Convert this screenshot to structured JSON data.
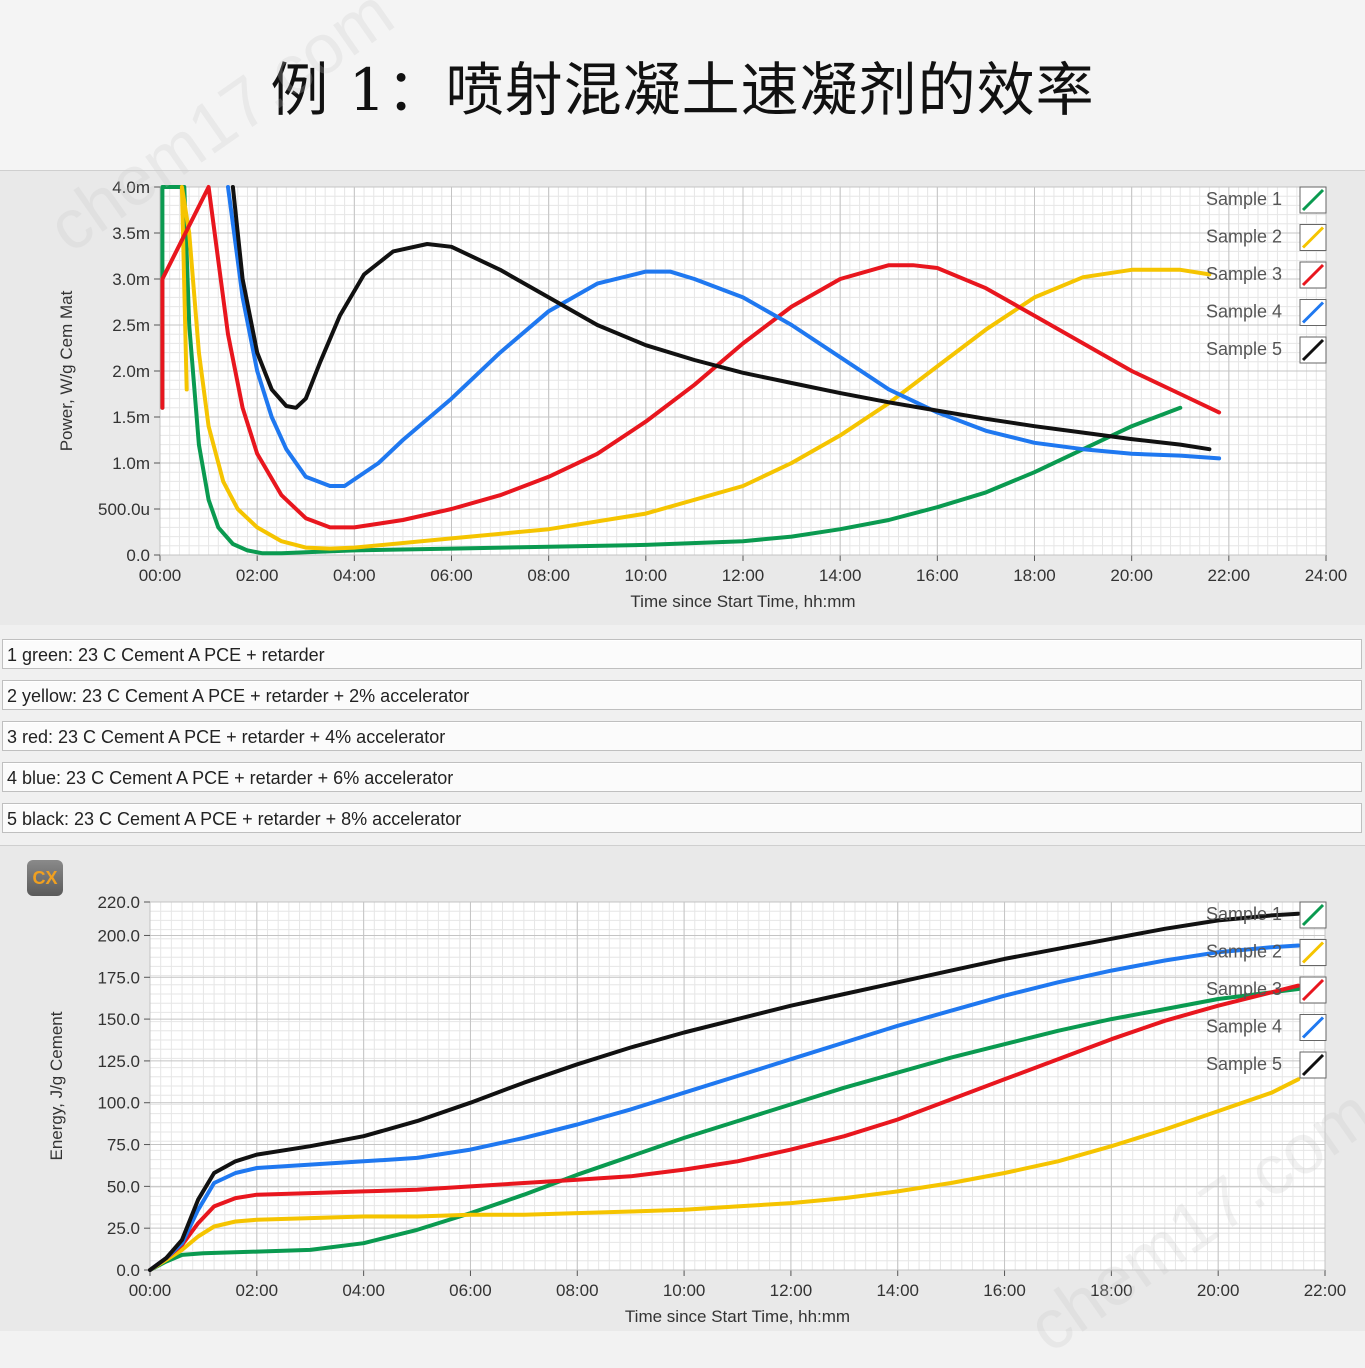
{
  "title": "例 1：喷射混凝土速凝剂的效率",
  "cx_logo": "CX",
  "watermark": "chem17.com",
  "colors": {
    "green": "#0a9a50",
    "yellow": "#f5c400",
    "red": "#e8161e",
    "blue": "#1f78f0",
    "black": "#111111"
  },
  "notes": [
    "1 green: 23 C Cement A PCE + retarder",
    "2 yellow: 23 C Cement A PCE + retarder  + 2% accelerator",
    "3 red: 23 C Cement A PCE + retarder  + 4% accelerator",
    "4 blue: 23 C Cement A PCE + retarder  + 6% accelerator",
    "5 black: 23 C Cement A PCE + retarder  + 8% accelerator"
  ],
  "chart_data": [
    {
      "type": "line",
      "xlabel": "Time since Start Time, hh:mm",
      "ylabel": "Power, W/g Cem Mat",
      "xlim": [
        0,
        24
      ],
      "ylim": [
        0,
        4.0
      ],
      "x_ticks": [
        "00:00",
        "02:00",
        "04:00",
        "06:00",
        "08:00",
        "10:00",
        "12:00",
        "14:00",
        "16:00",
        "18:00",
        "20:00",
        "22:00",
        "24:00"
      ],
      "y_ticks": [
        "0.0",
        "500.0u",
        "1.0m",
        "1.5m",
        "2.0m",
        "2.5m",
        "3.0m",
        "3.5m",
        "4.0m"
      ],
      "grid": true,
      "legend_position": "top-right",
      "series": [
        {
          "name": "Sample 1",
          "color": "green",
          "x": [
            0.05,
            0.05,
            0.5,
            0.6,
            0.8,
            1.0,
            1.2,
            1.5,
            1.8,
            2.1,
            2.5,
            3,
            4,
            6,
            8,
            10,
            12,
            13,
            14,
            15,
            16,
            17,
            18,
            19,
            20,
            20.5,
            21
          ],
          "y": [
            1.6,
            4.0,
            4.0,
            2.5,
            1.2,
            0.6,
            0.3,
            0.12,
            0.05,
            0.02,
            0.02,
            0.03,
            0.05,
            0.07,
            0.09,
            0.11,
            0.15,
            0.2,
            0.28,
            0.38,
            0.52,
            0.68,
            0.9,
            1.15,
            1.4,
            1.5,
            1.6
          ]
        },
        {
          "name": "Sample 2",
          "color": "yellow",
          "x": [
            0.55,
            0.45,
            0.6,
            0.8,
            1.0,
            1.3,
            1.6,
            2.0,
            2.5,
            3,
            3.5,
            4,
            6,
            8,
            10,
            12,
            13,
            14,
            15,
            16,
            17,
            18,
            19,
            20,
            21,
            21.6
          ],
          "y": [
            1.8,
            4.0,
            3.5,
            2.2,
            1.4,
            0.8,
            0.5,
            0.3,
            0.15,
            0.08,
            0.07,
            0.08,
            0.18,
            0.28,
            0.45,
            0.75,
            1.0,
            1.3,
            1.65,
            2.05,
            2.45,
            2.8,
            3.02,
            3.1,
            3.1,
            3.05
          ]
        },
        {
          "name": "Sample 3",
          "color": "red",
          "x": [
            0.05,
            0.05,
            1.0,
            1.2,
            1.4,
            1.7,
            2.0,
            2.5,
            3,
            3.5,
            4,
            5,
            6,
            7,
            8,
            9,
            10,
            11,
            12,
            13,
            14,
            15,
            15.5,
            16,
            17,
            18,
            19,
            20,
            21,
            21.8
          ],
          "y": [
            1.6,
            3.0,
            4.0,
            3.2,
            2.4,
            1.6,
            1.1,
            0.65,
            0.4,
            0.3,
            0.3,
            0.38,
            0.5,
            0.65,
            0.85,
            1.1,
            1.45,
            1.85,
            2.3,
            2.7,
            3.0,
            3.15,
            3.15,
            3.12,
            2.9,
            2.6,
            2.3,
            2.0,
            1.75,
            1.55
          ]
        },
        {
          "name": "Sample 4",
          "color": "blue",
          "x": [
            1.4,
            1.5,
            1.7,
            2.0,
            2.3,
            2.6,
            3,
            3.5,
            3.8,
            4.5,
            5,
            6,
            7,
            8,
            9,
            10,
            10.5,
            11,
            12,
            13,
            14,
            15,
            16,
            17,
            18,
            19,
            20,
            21,
            21.8
          ],
          "y": [
            4.0,
            3.6,
            2.8,
            2.0,
            1.5,
            1.15,
            0.85,
            0.75,
            0.75,
            1.0,
            1.25,
            1.7,
            2.2,
            2.65,
            2.95,
            3.08,
            3.08,
            3.0,
            2.8,
            2.5,
            2.15,
            1.8,
            1.55,
            1.35,
            1.22,
            1.15,
            1.1,
            1.08,
            1.05
          ]
        },
        {
          "name": "Sample 5",
          "color": "black",
          "x": [
            1.5,
            1.7,
            2.0,
            2.3,
            2.6,
            2.8,
            3.0,
            3.3,
            3.7,
            4.2,
            4.8,
            5.5,
            6,
            7,
            8,
            9,
            10,
            11,
            12,
            13,
            14,
            15,
            16,
            17,
            18,
            19,
            20,
            21,
            21.6
          ],
          "y": [
            4.0,
            3.0,
            2.2,
            1.8,
            1.62,
            1.6,
            1.7,
            2.1,
            2.6,
            3.05,
            3.3,
            3.38,
            3.35,
            3.1,
            2.8,
            2.5,
            2.28,
            2.12,
            1.98,
            1.87,
            1.76,
            1.66,
            1.57,
            1.48,
            1.4,
            1.33,
            1.26,
            1.2,
            1.15
          ]
        }
      ]
    },
    {
      "type": "line",
      "xlabel": "Time since Start Time, hh:mm",
      "ylabel": "Energy, J/g Cement",
      "xlim": [
        0,
        22
      ],
      "ylim": [
        0,
        220
      ],
      "x_ticks": [
        "00:00",
        "02:00",
        "04:00",
        "06:00",
        "08:00",
        "10:00",
        "12:00",
        "14:00",
        "16:00",
        "18:00",
        "20:00",
        "22:00"
      ],
      "y_ticks": [
        "0.0",
        "25.0",
        "50.0",
        "75.0",
        "100.0",
        "125.0",
        "150.0",
        "175.0",
        "200.0",
        "220.0"
      ],
      "grid": true,
      "legend_position": "top-right",
      "series": [
        {
          "name": "Sample 1",
          "color": "green",
          "x": [
            0,
            0.3,
            0.6,
            1,
            2,
            3,
            4,
            5,
            6,
            7,
            8,
            9,
            10,
            11,
            12,
            13,
            14,
            15,
            16,
            17,
            18,
            19,
            20,
            21,
            21.5
          ],
          "y": [
            0,
            5,
            9,
            10,
            11,
            12,
            16,
            24,
            34,
            45,
            57,
            68,
            79,
            89,
            99,
            109,
            118,
            127,
            135,
            143,
            150,
            156,
            162,
            166,
            168
          ]
        },
        {
          "name": "Sample 2",
          "color": "yellow",
          "x": [
            0,
            0.3,
            0.6,
            0.9,
            1.2,
            1.6,
            2,
            3,
            4,
            5,
            6,
            7,
            8,
            9,
            10,
            11,
            12,
            13,
            14,
            15,
            16,
            17,
            18,
            19,
            20,
            21,
            21.5
          ],
          "y": [
            0,
            6,
            12,
            20,
            26,
            29,
            30,
            31,
            32,
            32,
            33,
            33,
            34,
            35,
            36,
            38,
            40,
            43,
            47,
            52,
            58,
            65,
            74,
            84,
            95,
            106,
            114
          ]
        },
        {
          "name": "Sample 3",
          "color": "red",
          "x": [
            0,
            0.3,
            0.6,
            0.9,
            1.2,
            1.6,
            2,
            3,
            4,
            5,
            6,
            7,
            8,
            9,
            10,
            11,
            12,
            13,
            14,
            15,
            16,
            17,
            18,
            19,
            20,
            21,
            21.5
          ],
          "y": [
            0,
            7,
            15,
            28,
            38,
            43,
            45,
            46,
            47,
            48,
            50,
            52,
            54,
            56,
            60,
            65,
            72,
            80,
            90,
            102,
            114,
            126,
            138,
            149,
            158,
            166,
            170
          ]
        },
        {
          "name": "Sample 4",
          "color": "blue",
          "x": [
            0,
            0.3,
            0.6,
            0.9,
            1.2,
            1.6,
            2,
            3,
            4,
            5,
            6,
            7,
            8,
            9,
            10,
            11,
            12,
            13,
            14,
            15,
            16,
            17,
            18,
            19,
            20,
            21,
            21.5
          ],
          "y": [
            0,
            7,
            16,
            36,
            52,
            58,
            61,
            63,
            65,
            67,
            72,
            79,
            87,
            96,
            106,
            116,
            126,
            136,
            146,
            155,
            164,
            172,
            179,
            185,
            190,
            193,
            194
          ]
        },
        {
          "name": "Sample 5",
          "color": "black",
          "x": [
            0,
            0.3,
            0.6,
            0.9,
            1.2,
            1.6,
            2,
            3,
            4,
            5,
            6,
            7,
            8,
            9,
            10,
            11,
            12,
            13,
            14,
            15,
            16,
            17,
            18,
            19,
            20,
            21,
            21.5
          ],
          "y": [
            0,
            7,
            18,
            42,
            58,
            65,
            69,
            74,
            80,
            89,
            100,
            112,
            123,
            133,
            142,
            150,
            158,
            165,
            172,
            179,
            186,
            192,
            198,
            204,
            209,
            212,
            213
          ]
        }
      ]
    }
  ]
}
